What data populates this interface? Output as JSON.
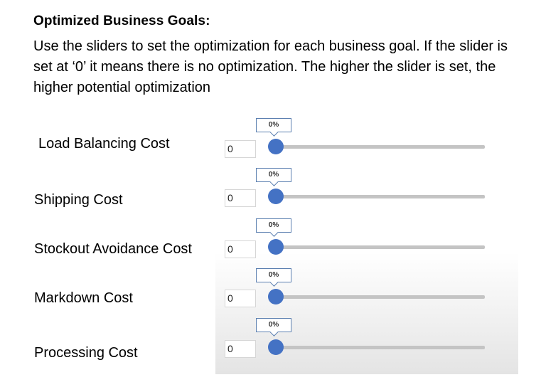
{
  "heading": "Optimized Business Goals:",
  "description": "Use the sliders to set the optimization for each business goal. If the slider is set at ‘0’ it means there is no optimization. The higher the slider is set, the higher potential optimization",
  "colors": {
    "thumb": "#4472c4",
    "track": "#c4c4c4",
    "tooltip_border": "#5b7fb0"
  },
  "goals": [
    {
      "label": "Load Balancing Cost",
      "input_value": "0",
      "tooltip": "0%",
      "level": 0
    },
    {
      "label": "Shipping Cost",
      "input_value": "0",
      "tooltip": "0%",
      "level": 0
    },
    {
      "label": "Stockout Avoidance Cost",
      "input_value": "0",
      "tooltip": "0%",
      "level": 0
    },
    {
      "label": "Markdown Cost",
      "input_value": "0",
      "tooltip": "0%",
      "level": 0
    },
    {
      "label": "Processing Cost",
      "input_value": "0",
      "tooltip": "0%",
      "level": 0
    }
  ]
}
